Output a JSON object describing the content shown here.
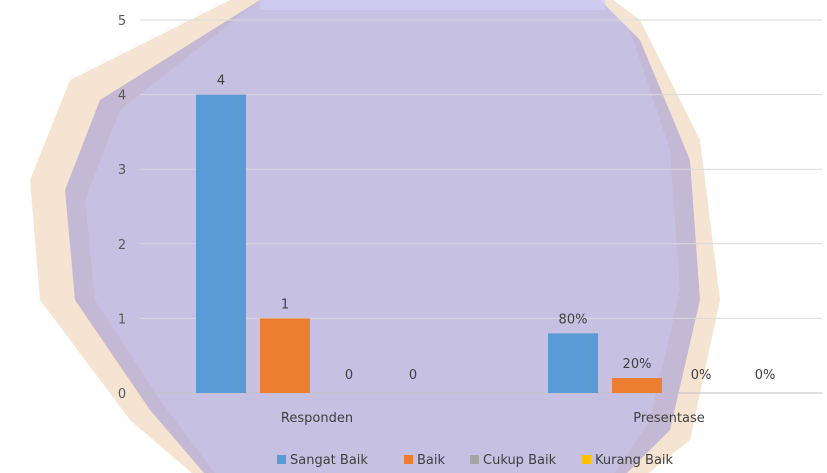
{
  "chart_data": {
    "type": "bar",
    "categories": [
      "Responden",
      "Presentase"
    ],
    "series": [
      {
        "name": "Sangat Baik",
        "color": "#5B9BD5",
        "values": [
          4,
          0.8
        ],
        "labels": [
          "4",
          "80%"
        ]
      },
      {
        "name": "Baik",
        "color": "#ED7D31",
        "values": [
          1,
          0.2
        ],
        "labels": [
          "1",
          "20%"
        ]
      },
      {
        "name": "Cukup Baik",
        "color": "#A5A5A5",
        "values": [
          0,
          0
        ],
        "labels": [
          "0",
          "0%"
        ]
      },
      {
        "name": "Kurang Baik",
        "color": "#FFC000",
        "values": [
          0,
          0
        ],
        "labels": [
          "0",
          "0%"
        ]
      }
    ],
    "ylim": [
      0,
      5
    ],
    "yticks": [
      "0",
      "1",
      "2",
      "3",
      "4",
      "5"
    ],
    "grid": true,
    "legend_position": "bottom"
  }
}
